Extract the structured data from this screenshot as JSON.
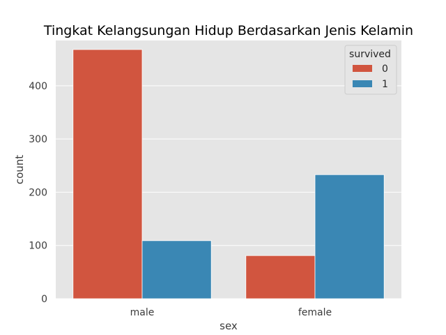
{
  "chart_data": {
    "type": "bar",
    "title": "Tingkat Kelangsungan Hidup Berdasarkan Jenis Kelamin",
    "xlabel": "sex",
    "ylabel": "count",
    "categories": [
      "male",
      "female"
    ],
    "series": [
      {
        "name": "0",
        "color": "#d1553f",
        "values": [
          468,
          81
        ]
      },
      {
        "name": "1",
        "color": "#3a87b4",
        "values": [
          109,
          233
        ]
      }
    ],
    "ylim": [
      0,
      485
    ],
    "yticks": [
      0,
      100,
      200,
      300,
      400
    ],
    "ytick_labels": [
      "0",
      "100",
      "200",
      "300",
      "400"
    ],
    "legend": {
      "title": "survived",
      "position": "top-right"
    },
    "grid": true,
    "colors": {
      "plot_background": "#e5e5e5",
      "grid": "#ffffff"
    }
  }
}
